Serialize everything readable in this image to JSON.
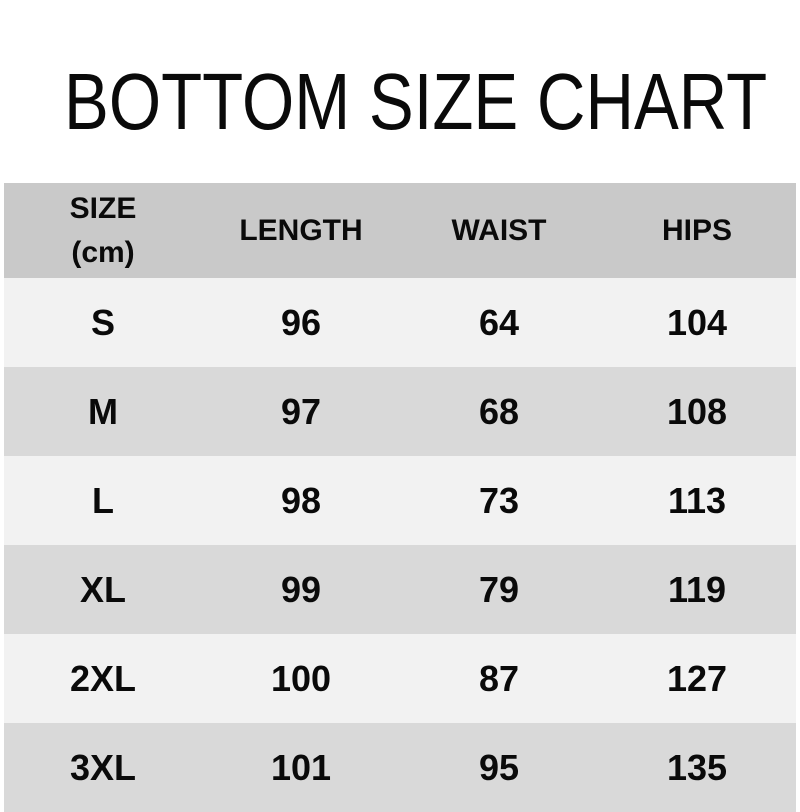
{
  "title": "BOTTOM SIZE CHART",
  "table": {
    "header": {
      "size_label": "SIZE",
      "size_unit": "(cm)",
      "length_label": "LENGTH",
      "waist_label": "WAIST",
      "hips_label": "HIPS"
    },
    "rows": [
      {
        "size": "S",
        "length": "96",
        "waist": "64",
        "hips": "104"
      },
      {
        "size": "M",
        "length": "97",
        "waist": "68",
        "hips": "108"
      },
      {
        "size": "L",
        "length": "98",
        "waist": "73",
        "hips": "113"
      },
      {
        "size": "XL",
        "length": "99",
        "waist": "79",
        "hips": "119"
      },
      {
        "size": "2XL",
        "length": "100",
        "waist": "87",
        "hips": "127"
      },
      {
        "size": "3XL",
        "length": "101",
        "waist": "95",
        "hips": "135"
      }
    ]
  },
  "colors": {
    "header_bg": "#c9c9c9",
    "row_light": "#f2f2f2",
    "row_dark": "#d9d9d9",
    "text": "#0a0a0a",
    "background": "#ffffff"
  },
  "chart_data": {
    "type": "table",
    "title": "BOTTOM SIZE CHART",
    "columns": [
      "SIZE (cm)",
      "LENGTH",
      "WAIST",
      "HIPS"
    ],
    "rows": [
      [
        "S",
        96,
        64,
        104
      ],
      [
        "M",
        97,
        68,
        108
      ],
      [
        "L",
        98,
        73,
        113
      ],
      [
        "XL",
        99,
        79,
        119
      ],
      [
        "2XL",
        100,
        87,
        127
      ],
      [
        "3XL",
        101,
        95,
        135
      ]
    ]
  }
}
